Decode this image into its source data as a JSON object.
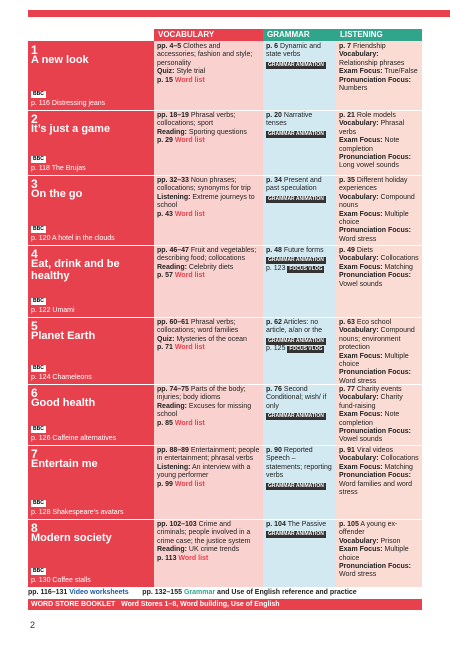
{
  "headers": {
    "vocabulary": "VOCABULARY",
    "grammar": "GRAMMAR",
    "listening": "LISTENING"
  },
  "units": [
    {
      "num": "1",
      "title": "A new look",
      "video": "p. 116 Distressing jeans",
      "voc_pages": "pp. 4–5",
      "voc_text": "Clothes and accessories; fashion and style; personality",
      "voc_extra_label": "Quiz:",
      "voc_extra": "Style trial",
      "voc_wl_page": "p. 15",
      "gra_page": "p. 6",
      "gra_text": "Dynamic and state verbs",
      "lis_page": "p. 7",
      "lis_text": "Friendship",
      "lis_voc_label": "Vocabulary:",
      "lis_voc": "Relationship phrases",
      "lis_exam_label": "Exam Focus:",
      "lis_exam": "True/False",
      "lis_pron_label": "Pronunciation Focus:",
      "lis_pron": "Numbers"
    },
    {
      "num": "2",
      "title": "It’s just a game",
      "video": "p. 118 The Brujas",
      "voc_pages": "pp. 18–19",
      "voc_text": "Phrasal verbs; collocations; sport",
      "voc_extra_label": "Reading:",
      "voc_extra": "Sporting questions",
      "voc_wl_page": "p. 29",
      "gra_page": "p. 20",
      "gra_text": "Narrative tenses",
      "lis_page": "p. 21",
      "lis_text": "Role models",
      "lis_voc_label": "Vocabulary:",
      "lis_voc": "Phrasal verbs",
      "lis_exam_label": "Exam Focus:",
      "lis_exam": "Note completion",
      "lis_pron_label": "Pronunciation Focus:",
      "lis_pron": "Long vowel sounds"
    },
    {
      "num": "3",
      "title": "On the go",
      "video": "p. 120 A hotel in the clouds",
      "voc_pages": "pp. 32–33",
      "voc_text": "Noun phrases; collocations; synonyms for trip",
      "voc_extra_label": "Listening:",
      "voc_extra": "Extreme journeys to school",
      "voc_wl_page": "p. 43",
      "gra_page": "p. 34",
      "gra_text": "Present and past speculation",
      "lis_page": "p. 35",
      "lis_text": "Different holiday experiences",
      "lis_voc_label": "Vocabulary:",
      "lis_voc": "Compound nouns",
      "lis_exam_label": "Exam Focus:",
      "lis_exam": "Multiple choice",
      "lis_pron_label": "Pronunciation Focus:",
      "lis_pron": "Word stress"
    },
    {
      "num": "4",
      "title": "Eat, drink and be healthy",
      "video": "p. 122 Umami",
      "voc_pages": "pp. 46–47",
      "voc_text": "Fruit and vegetables; describing food; collocations",
      "voc_extra_label": "Reading:",
      "voc_extra": "Celebrity diets",
      "voc_wl_page": "p. 57",
      "gra_page": "p. 48",
      "gra_text": "Future forms",
      "gra_vlog_page": "p. 123",
      "lis_page": "p. 49",
      "lis_text": "Diets",
      "lis_voc_label": "Vocabulary:",
      "lis_voc": "Collocations",
      "lis_exam_label": "Exam Focus:",
      "lis_exam": "Matching",
      "lis_pron_label": "Pronunciation Focus:",
      "lis_pron": "Vowel sounds"
    },
    {
      "num": "5",
      "title": "Planet Earth",
      "video": "p. 124 Chameleons",
      "voc_pages": "pp. 60–61",
      "voc_text": "Phrasal verbs; collocations; word families",
      "voc_extra_label": "Quiz:",
      "voc_extra": "Mysteries of the ocean",
      "voc_wl_page": "p. 71",
      "gra_page": "p. 62",
      "gra_text": "Articles: no article, a/an or the",
      "gra_vlog_page": "p. 125",
      "lis_page": "p. 63",
      "lis_text": "Eco school",
      "lis_voc_label": "Vocabulary:",
      "lis_voc": "Compound nouns; environment protection",
      "lis_exam_label": "Exam Focus:",
      "lis_exam": "Multiple choice",
      "lis_pron_label": "Pronunciation Focus:",
      "lis_pron": "Word stress"
    },
    {
      "num": "6",
      "title": "Good health",
      "video": "p. 126 Caffeine alternatives",
      "voc_pages": "pp. 74–75",
      "voc_text": "Parts of the body; injuries; body idioms",
      "voc_extra_label": "Reading:",
      "voc_extra": "Excuses for missing school",
      "voc_wl_page": "p. 85",
      "gra_page": "p. 76",
      "gra_text": "Second Conditional; wish/ if only",
      "lis_page": "p. 77",
      "lis_text": "Charity events",
      "lis_voc_label": "Vocabulary:",
      "lis_voc": "Charity fund-raising",
      "lis_exam_label": "Exam Focus:",
      "lis_exam": "Note completion",
      "lis_pron_label": "Pronunciation Focus:",
      "lis_pron": "Vowel sounds"
    },
    {
      "num": "7",
      "title": "Entertain me",
      "video": "p. 128 Shakespeare’s avatars",
      "voc_pages": "pp. 88–89",
      "voc_text": "Entertainment; people in entertainment; phrasal verbs",
      "voc_extra_label": "Listening:",
      "voc_extra": "An interview with a young performer",
      "voc_wl_page": "p. 99",
      "gra_page": "p. 90",
      "gra_text": "Reported Speech – statements; reporting verbs",
      "lis_page": "p. 91",
      "lis_text": "Viral videos",
      "lis_voc_label": "Vocabulary:",
      "lis_voc": "Collocations",
      "lis_exam_label": "Exam Focus:",
      "lis_exam": "Matching",
      "lis_pron_label": "Pronunciation Focus:",
      "lis_pron": "Word families and word stress"
    },
    {
      "num": "8",
      "title": "Modern society",
      "video": "p. 130 Coffee stalls",
      "voc_pages": "pp. 102–103",
      "voc_text": "Crime and criminals; people involved in a crime case; the justice system",
      "voc_extra_label": "Reading:",
      "voc_extra": "UK crime trends",
      "voc_wl_page": "p. 113",
      "gra_page": "p. 104",
      "gra_text": "The Passive",
      "lis_page": "p. 105",
      "lis_text": "A young ex-offender",
      "lis_voc_label": "Vocabulary:",
      "lis_voc": "Prison",
      "lis_exam_label": "Exam Focus:",
      "lis_exam": "Multiple choice",
      "lis_pron_label": "Pronunciation Focus:",
      "lis_pron": "Word stress"
    }
  ],
  "labels": {
    "bbc": "BBC",
    "word_list": "Word list",
    "grammar_animation": "GRAMMAR ANIMATION",
    "focus_vlog": "FOCUS VLOG"
  },
  "footer": {
    "video_pages": "pp. 116–131",
    "video_label": "Video worksheets",
    "grammar_pages": "pp. 132–155",
    "grammar_label": "Grammar",
    "rest": "and Use of English reference and practice",
    "booklet_label": "WORD STORE BOOKLET",
    "booklet_text": "Word Stores 1–8, Word building, Use of English"
  },
  "page_number": "2"
}
